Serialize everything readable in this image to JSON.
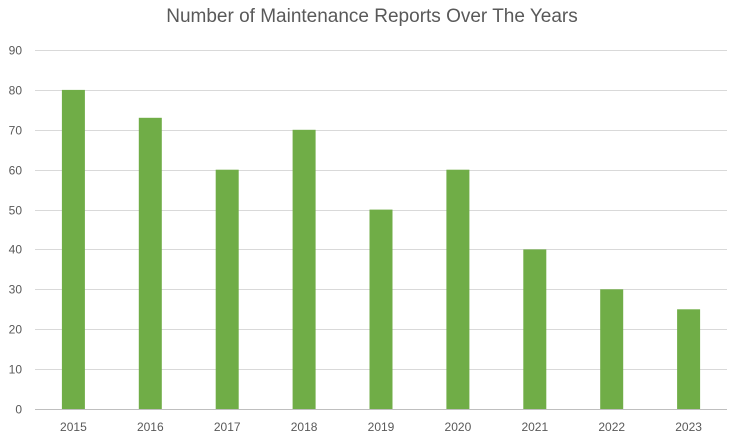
{
  "chart_data": {
    "type": "bar",
    "title": "Number of Maintenance Reports Over The Years",
    "xlabel": "",
    "ylabel": "",
    "categories": [
      "2015",
      "2016",
      "2017",
      "2018",
      "2019",
      "2020",
      "2021",
      "2022",
      "2023"
    ],
    "values": [
      80,
      73,
      60,
      70,
      50,
      60,
      40,
      30,
      25
    ],
    "ylim": [
      0,
      90
    ],
    "yticks": [
      0,
      10,
      20,
      30,
      40,
      50,
      60,
      70,
      80,
      90
    ],
    "grid": true,
    "legend": "none",
    "colors": {
      "bar": "#70AD47",
      "grid": "#D9D9D9",
      "axis": "#BFBFBF",
      "text": "#595959"
    }
  }
}
